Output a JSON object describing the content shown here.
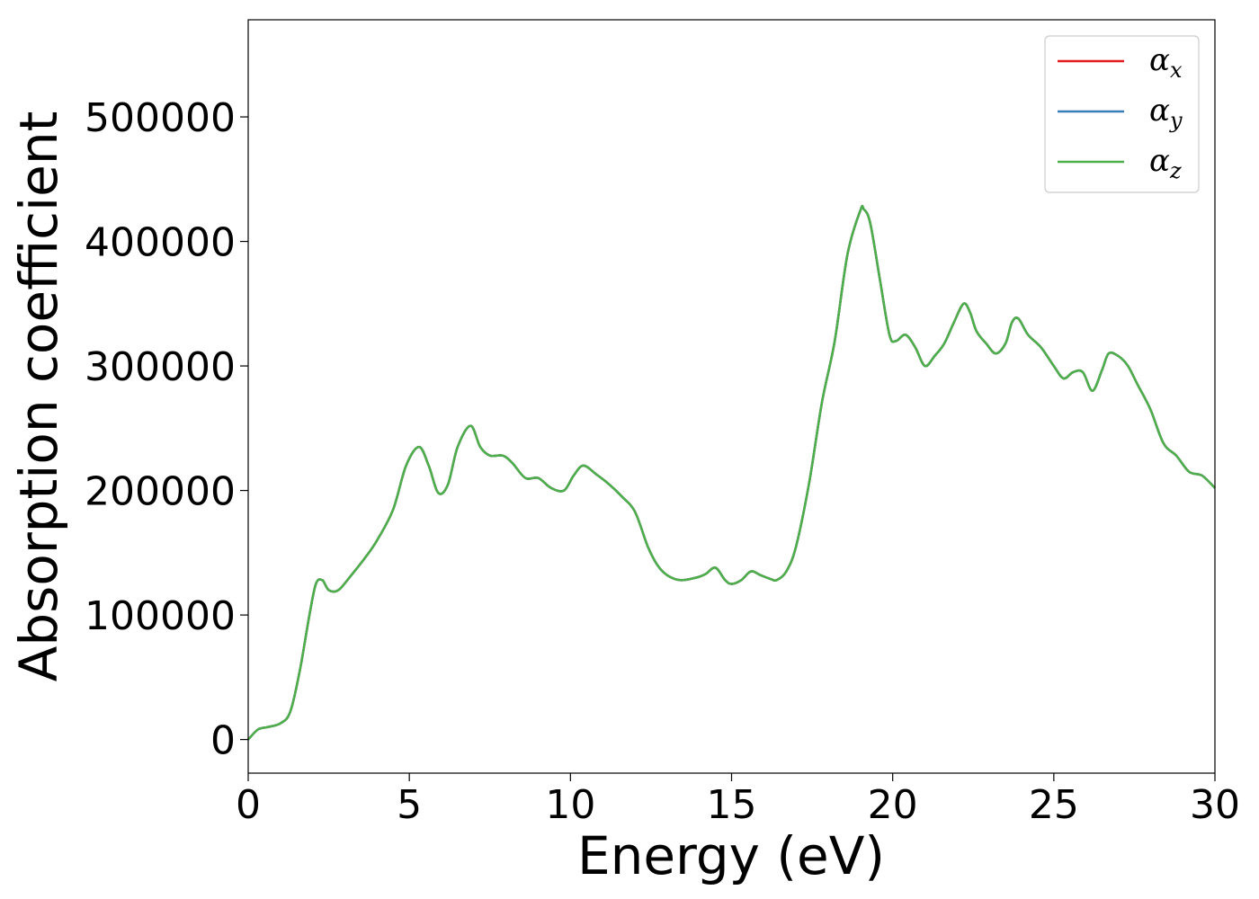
{
  "chart_data": {
    "type": "line",
    "title": "",
    "xlabel": "Energy (eV)",
    "ylabel": "Absorption coefficient",
    "xlim": [
      0,
      30
    ],
    "ylim": [
      -27000,
      578000
    ],
    "xticks": [
      0,
      5,
      10,
      15,
      20,
      25,
      30
    ],
    "yticks": [
      0,
      100000,
      200000,
      300000,
      400000,
      500000
    ],
    "grid": false,
    "legend_position": "top-right",
    "series": [
      {
        "name": "α_x",
        "legend_symbol": "α",
        "legend_subscript": "x",
        "color": "#e41a1c",
        "x": [
          0,
          0.3,
          0.6,
          1.0,
          1.3,
          1.6,
          1.9,
          2.1,
          2.3,
          2.5,
          2.8,
          3.2,
          3.6,
          4.0,
          4.5,
          4.9,
          5.3,
          5.6,
          5.9,
          6.2,
          6.5,
          6.9,
          7.2,
          7.5,
          7.9,
          8.2,
          8.6,
          9.0,
          9.4,
          9.8,
          10.1,
          10.4,
          10.8,
          11.2,
          11.6,
          12.0,
          12.4,
          12.7,
          13.0,
          13.4,
          13.9,
          14.2,
          14.5,
          14.8,
          15.0,
          15.3,
          15.6,
          15.9,
          16.2,
          16.4,
          16.7,
          17.0,
          17.4,
          17.8,
          18.2,
          18.6,
          19.0,
          19.1,
          19.3,
          19.6,
          19.9,
          20.1,
          20.4,
          20.7,
          21.0,
          21.3,
          21.6,
          21.9,
          22.2,
          22.4,
          22.6,
          22.9,
          23.2,
          23.5,
          23.7,
          23.9,
          24.2,
          24.6,
          25.0,
          25.3,
          25.6,
          25.9,
          26.2,
          26.5,
          26.7,
          27.0,
          27.3,
          27.6,
          28.0,
          28.4,
          28.8,
          29.2,
          29.6,
          30.0
        ],
        "values": [
          0,
          8000,
          10000,
          13000,
          22000,
          55000,
          100000,
          125000,
          128000,
          120000,
          120000,
          132000,
          145000,
          160000,
          185000,
          220000,
          235000,
          220000,
          198000,
          205000,
          235000,
          252000,
          235000,
          228000,
          228000,
          222000,
          210000,
          210000,
          202000,
          200000,
          212000,
          220000,
          213000,
          205000,
          195000,
          183000,
          155000,
          140000,
          132000,
          128000,
          130000,
          133000,
          138000,
          128000,
          125000,
          128000,
          135000,
          132000,
          129000,
          128000,
          135000,
          155000,
          205000,
          270000,
          320000,
          390000,
          425000,
          426000,
          415000,
          370000,
          325000,
          320000,
          325000,
          315000,
          300000,
          308000,
          318000,
          335000,
          350000,
          343000,
          328000,
          318000,
          310000,
          318000,
          335000,
          338000,
          325000,
          315000,
          300000,
          290000,
          295000,
          295000,
          280000,
          297000,
          310000,
          308000,
          300000,
          285000,
          265000,
          238000,
          228000,
          215000,
          212000,
          202000
        ]
      },
      {
        "name": "α_y",
        "legend_symbol": "α",
        "legend_subscript": "y",
        "color": "#377eb8",
        "x": [
          0,
          0.3,
          0.6,
          1.0,
          1.3,
          1.6,
          1.9,
          2.1,
          2.3,
          2.5,
          2.8,
          3.2,
          3.6,
          4.0,
          4.5,
          4.9,
          5.3,
          5.6,
          5.9,
          6.2,
          6.5,
          6.9,
          7.2,
          7.5,
          7.9,
          8.2,
          8.6,
          9.0,
          9.4,
          9.8,
          10.1,
          10.4,
          10.8,
          11.2,
          11.6,
          12.0,
          12.4,
          12.7,
          13.0,
          13.4,
          13.9,
          14.2,
          14.5,
          14.8,
          15.0,
          15.3,
          15.6,
          15.9,
          16.2,
          16.4,
          16.7,
          17.0,
          17.4,
          17.8,
          18.2,
          18.6,
          19.0,
          19.1,
          19.3,
          19.6,
          19.9,
          20.1,
          20.4,
          20.7,
          21.0,
          21.3,
          21.6,
          21.9,
          22.2,
          22.4,
          22.6,
          22.9,
          23.2,
          23.5,
          23.7,
          23.9,
          24.2,
          24.6,
          25.0,
          25.3,
          25.6,
          25.9,
          26.2,
          26.5,
          26.7,
          27.0,
          27.3,
          27.6,
          28.0,
          28.4,
          28.8,
          29.2,
          29.6,
          30.0
        ],
        "values": [
          0,
          8000,
          10000,
          13000,
          22000,
          55000,
          100000,
          125000,
          128000,
          120000,
          120000,
          132000,
          145000,
          160000,
          185000,
          220000,
          235000,
          220000,
          198000,
          205000,
          235000,
          252000,
          235000,
          228000,
          228000,
          222000,
          210000,
          210000,
          202000,
          200000,
          212000,
          220000,
          213000,
          205000,
          195000,
          183000,
          155000,
          140000,
          132000,
          128000,
          130000,
          133000,
          138000,
          128000,
          125000,
          128000,
          135000,
          132000,
          129000,
          128000,
          135000,
          155000,
          205000,
          270000,
          320000,
          390000,
          425000,
          426000,
          415000,
          370000,
          325000,
          320000,
          325000,
          315000,
          300000,
          308000,
          318000,
          335000,
          350000,
          343000,
          328000,
          318000,
          310000,
          318000,
          335000,
          338000,
          325000,
          315000,
          300000,
          290000,
          295000,
          295000,
          280000,
          297000,
          310000,
          308000,
          300000,
          285000,
          265000,
          238000,
          228000,
          215000,
          212000,
          202000
        ]
      },
      {
        "name": "α_z",
        "legend_symbol": "α",
        "legend_subscript": "z",
        "color": "#4daf4a",
        "x": [
          0,
          0.3,
          0.6,
          1.0,
          1.3,
          1.6,
          1.9,
          2.1,
          2.3,
          2.5,
          2.8,
          3.2,
          3.6,
          4.0,
          4.5,
          4.9,
          5.3,
          5.6,
          5.9,
          6.2,
          6.5,
          6.9,
          7.2,
          7.5,
          7.9,
          8.2,
          8.6,
          9.0,
          9.4,
          9.8,
          10.1,
          10.4,
          10.8,
          11.2,
          11.6,
          12.0,
          12.4,
          12.7,
          13.0,
          13.4,
          13.9,
          14.2,
          14.5,
          14.8,
          15.0,
          15.3,
          15.6,
          15.9,
          16.2,
          16.4,
          16.7,
          17.0,
          17.4,
          17.8,
          18.2,
          18.6,
          19.0,
          19.1,
          19.3,
          19.6,
          19.9,
          20.1,
          20.4,
          20.7,
          21.0,
          21.3,
          21.6,
          21.9,
          22.2,
          22.4,
          22.6,
          22.9,
          23.2,
          23.5,
          23.7,
          23.9,
          24.2,
          24.6,
          25.0,
          25.3,
          25.6,
          25.9,
          26.2,
          26.5,
          26.7,
          27.0,
          27.3,
          27.6,
          28.0,
          28.4,
          28.8,
          29.2,
          29.6,
          30.0
        ],
        "values": [
          0,
          8000,
          10000,
          13000,
          22000,
          55000,
          100000,
          125000,
          128000,
          120000,
          120000,
          132000,
          145000,
          160000,
          185000,
          220000,
          235000,
          220000,
          198000,
          205000,
          235000,
          252000,
          235000,
          228000,
          228000,
          222000,
          210000,
          210000,
          202000,
          200000,
          212000,
          220000,
          213000,
          205000,
          195000,
          183000,
          155000,
          140000,
          132000,
          128000,
          130000,
          133000,
          138000,
          128000,
          125000,
          128000,
          135000,
          132000,
          129000,
          128000,
          135000,
          155000,
          205000,
          270000,
          320000,
          390000,
          425000,
          426000,
          415000,
          370000,
          325000,
          320000,
          325000,
          315000,
          300000,
          308000,
          318000,
          335000,
          350000,
          343000,
          328000,
          318000,
          310000,
          318000,
          335000,
          338000,
          325000,
          315000,
          300000,
          290000,
          295000,
          295000,
          280000,
          297000,
          310000,
          308000,
          300000,
          285000,
          265000,
          238000,
          228000,
          215000,
          212000,
          202000
        ]
      }
    ]
  }
}
